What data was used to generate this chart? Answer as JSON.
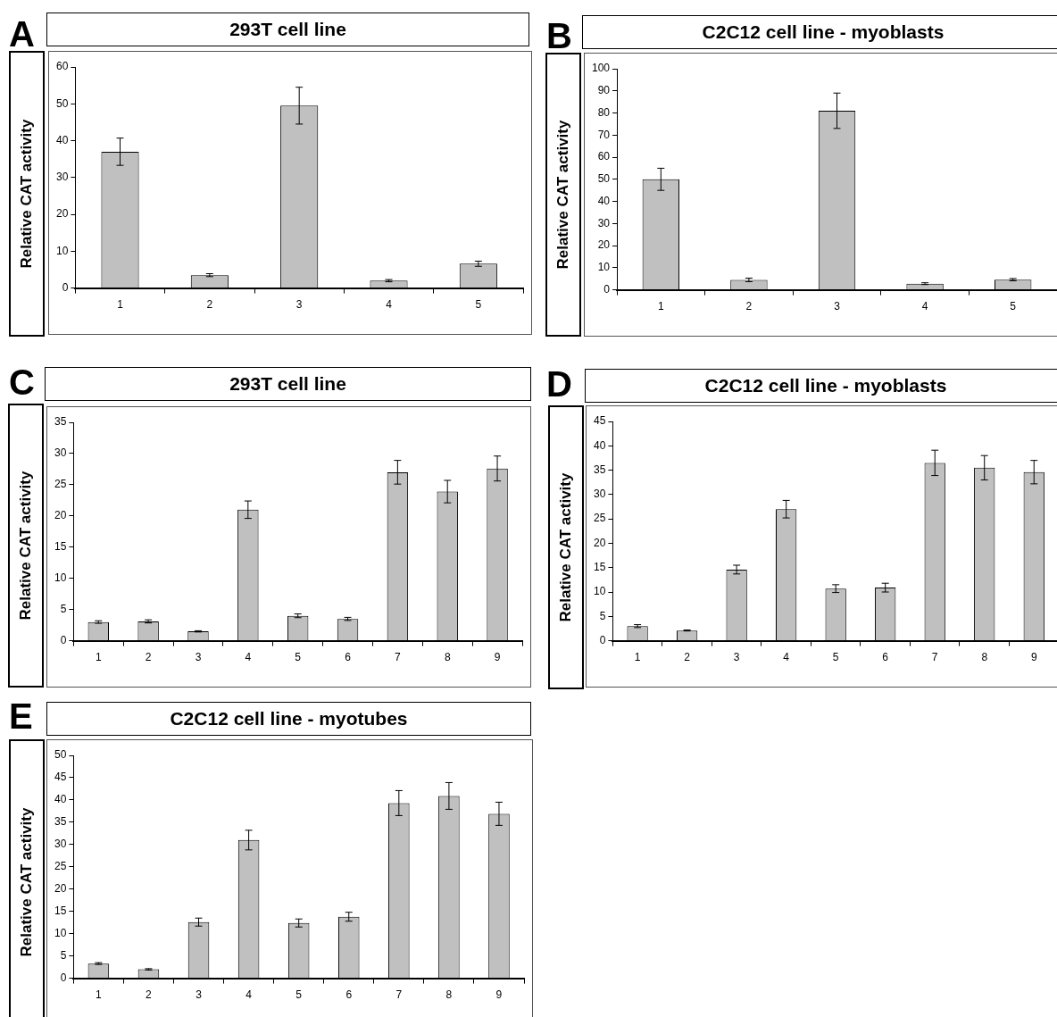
{
  "chart_data": [
    {
      "type": "bar",
      "title": "293T cell line",
      "ylabel": "Relative CAT activity",
      "annotations": [
        "A"
      ],
      "categories": [
        "1",
        "2",
        "3",
        "4",
        "5"
      ],
      "color": "#c0c0c0",
      "values": [
        37,
        3.5,
        49.5,
        2,
        6.6
      ],
      "errors": [
        3.7,
        0.4,
        5,
        0.3,
        0.7
      ],
      "ylim": [
        0,
        60
      ],
      "yticks": [
        0,
        10,
        20,
        30,
        40,
        50,
        60
      ],
      "grid": false,
      "legend": false
    },
    {
      "type": "bar",
      "title": "C2C12 cell line - myoblasts",
      "ylabel": "Relative CAT activity",
      "annotations": [
        "B"
      ],
      "categories": [
        "1",
        "2",
        "3",
        "4",
        "5"
      ],
      "color": "#c0c0c0",
      "values": [
        50,
        4.5,
        81,
        2.8,
        4.6
      ],
      "errors": [
        5,
        0.8,
        8,
        0.4,
        0.5
      ],
      "ylim": [
        0,
        100
      ],
      "yticks": [
        0,
        10,
        20,
        30,
        40,
        50,
        60,
        70,
        80,
        90,
        100
      ],
      "grid": false,
      "legend": false
    },
    {
      "type": "bar",
      "title": "293T cell line",
      "ylabel": "Relative CAT activity",
      "annotations": [
        "C"
      ],
      "categories": [
        "1",
        "2",
        "3",
        "4",
        "5",
        "6",
        "7",
        "8",
        "9"
      ],
      "color": "#c0c0c0",
      "values": [
        3.0,
        3.1,
        1.5,
        21,
        4.0,
        3.5,
        27,
        23.9,
        27.6
      ],
      "errors": [
        0.2,
        0.25,
        0.1,
        1.4,
        0.3,
        0.25,
        1.9,
        1.8,
        2
      ],
      "ylim": [
        0,
        35
      ],
      "yticks": [
        0,
        5,
        10,
        15,
        20,
        25,
        30,
        35
      ],
      "grid": false,
      "legend": false
    },
    {
      "type": "bar",
      "title": "C2C12 cell line - myoblasts",
      "ylabel": "Relative CAT activity",
      "annotations": [
        "D"
      ],
      "categories": [
        "1",
        "2",
        "3",
        "4",
        "5",
        "6",
        "7",
        "8",
        "9"
      ],
      "color": "#c0c0c0",
      "values": [
        3.0,
        2.1,
        14.6,
        27,
        10.7,
        10.9,
        36.5,
        35.5,
        34.6
      ],
      "errors": [
        0.3,
        0.1,
        0.9,
        1.8,
        0.8,
        0.9,
        2.6,
        2.5,
        2.4
      ],
      "ylim": [
        0,
        45
      ],
      "yticks": [
        0,
        5,
        10,
        15,
        20,
        25,
        30,
        35,
        40,
        45
      ],
      "grid": false,
      "legend": false
    },
    {
      "type": "bar",
      "title": "C2C12 cell line - myotubes",
      "ylabel": "Relative CAT activity",
      "annotations": [
        "E"
      ],
      "categories": [
        "1",
        "2",
        "3",
        "4",
        "5",
        "6",
        "7",
        "8",
        "9"
      ],
      "color": "#c0c0c0",
      "values": [
        3.3,
        2.0,
        12.6,
        31,
        12.4,
        13.8,
        39.3,
        40.9,
        36.9
      ],
      "errors": [
        0.2,
        0.15,
        0.9,
        2.2,
        0.9,
        1,
        2.8,
        3,
        2.6
      ],
      "ylim": [
        0,
        50
      ],
      "yticks": [
        0,
        5,
        10,
        15,
        20,
        25,
        30,
        35,
        40,
        45,
        50
      ],
      "grid": false,
      "legend": false
    }
  ]
}
